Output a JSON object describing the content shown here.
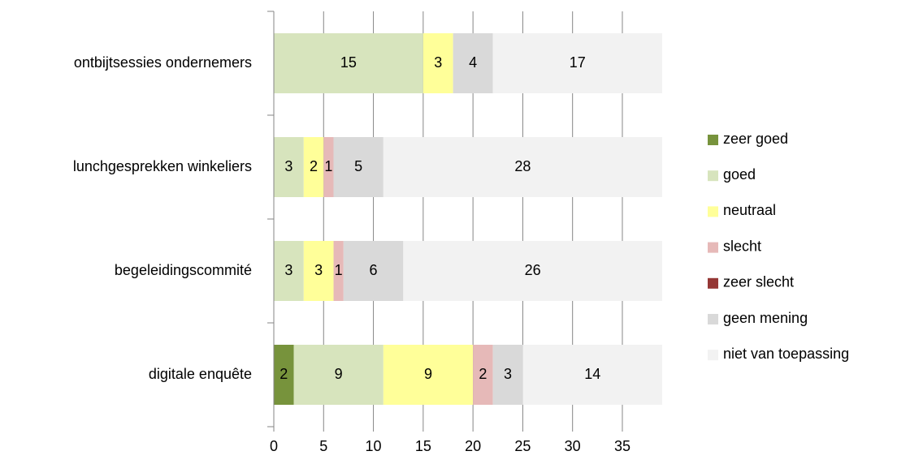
{
  "chart_data": {
    "type": "stacked-bar-horizontal",
    "categories": [
      "ontbijtsessies ondernemers",
      "lunchgesprekken winkeliers",
      "begeleidingscommité",
      "digitale enquête"
    ],
    "series": [
      {
        "name": "zeer goed",
        "color": "#77933c",
        "values": [
          null,
          null,
          null,
          2
        ]
      },
      {
        "name": "goed",
        "color": "#d7e4bd",
        "values": [
          15,
          3,
          3,
          9
        ]
      },
      {
        "name": "neutraal",
        "color": "#ffff99",
        "values": [
          3,
          2,
          3,
          9
        ]
      },
      {
        "name": "slecht",
        "color": "#e6b9b8",
        "values": [
          null,
          1,
          1,
          2
        ]
      },
      {
        "name": "zeer slecht",
        "color": "#953735",
        "values": [
          null,
          null,
          null,
          null
        ]
      },
      {
        "name": "geen mening",
        "color": "#d9d9d9",
        "values": [
          4,
          5,
          6,
          3
        ]
      },
      {
        "name": "niet van toepassing",
        "color": "#f2f2f2",
        "values": [
          17,
          28,
          26,
          14
        ]
      }
    ],
    "xlim": [
      0,
      39
    ],
    "xticks": [
      0,
      5,
      10,
      15,
      20,
      25,
      30,
      35
    ],
    "grid": true,
    "legend": "right"
  }
}
